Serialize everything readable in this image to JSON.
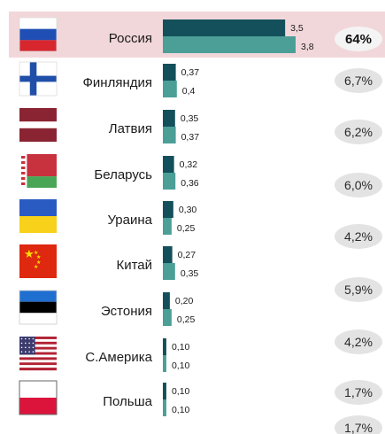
{
  "chart_data": {
    "type": "bar",
    "orientation": "horizontal",
    "colors": {
      "series_a": "#13505b",
      "series_b": "#4b9f97",
      "highlight_row": "#f2d7da",
      "pill": "#e3e3e3",
      "pill_highlight": "#f4f4f4"
    },
    "rows": [
      {
        "name": "Россия",
        "a_label": "3,5",
        "b_label": "3,8",
        "share": "64%",
        "highlight": true,
        "flag": "russia"
      },
      {
        "name": "Финляндия",
        "a_label": "0,37",
        "b_label": "0,4",
        "share": "6,7%",
        "flag": "finland"
      },
      {
        "name": "Латвия",
        "a_label": "0,35",
        "b_label": "0,37",
        "share": "6,2%",
        "flag": "latvia"
      },
      {
        "name": "Беларусь",
        "a_label": "0,32",
        "b_label": "0,36",
        "share": "6,0%",
        "flag": "belarus"
      },
      {
        "name": "Ураина",
        "a_label": "0,30",
        "b_label": "0,25",
        "share": "4,2%",
        "flag": "ukraine"
      },
      {
        "name": "Китай",
        "a_label": "0,27",
        "b_label": "0,35",
        "share": "5,9%",
        "flag": "china"
      },
      {
        "name": "Эстония",
        "a_label": "0,20",
        "b_label": "0,25",
        "share": "4,2%",
        "flag": "estonia"
      },
      {
        "name": "С.Америка",
        "a_label": "0,10",
        "b_label": "0,10",
        "share": "1,7%",
        "flag": "usa"
      },
      {
        "name": "Польша",
        "a_label": "0,10",
        "b_label": "0,10",
        "share": "1,7%",
        "flag": "poland"
      }
    ],
    "series": [
      {
        "values": [
          3.5,
          0.37,
          0.35,
          0.32,
          0.3,
          0.27,
          0.2,
          0.1,
          0.1
        ]
      },
      {
        "values": [
          3.8,
          0.4,
          0.37,
          0.36,
          0.25,
          0.35,
          0.25,
          0.1,
          0.1
        ]
      }
    ]
  }
}
